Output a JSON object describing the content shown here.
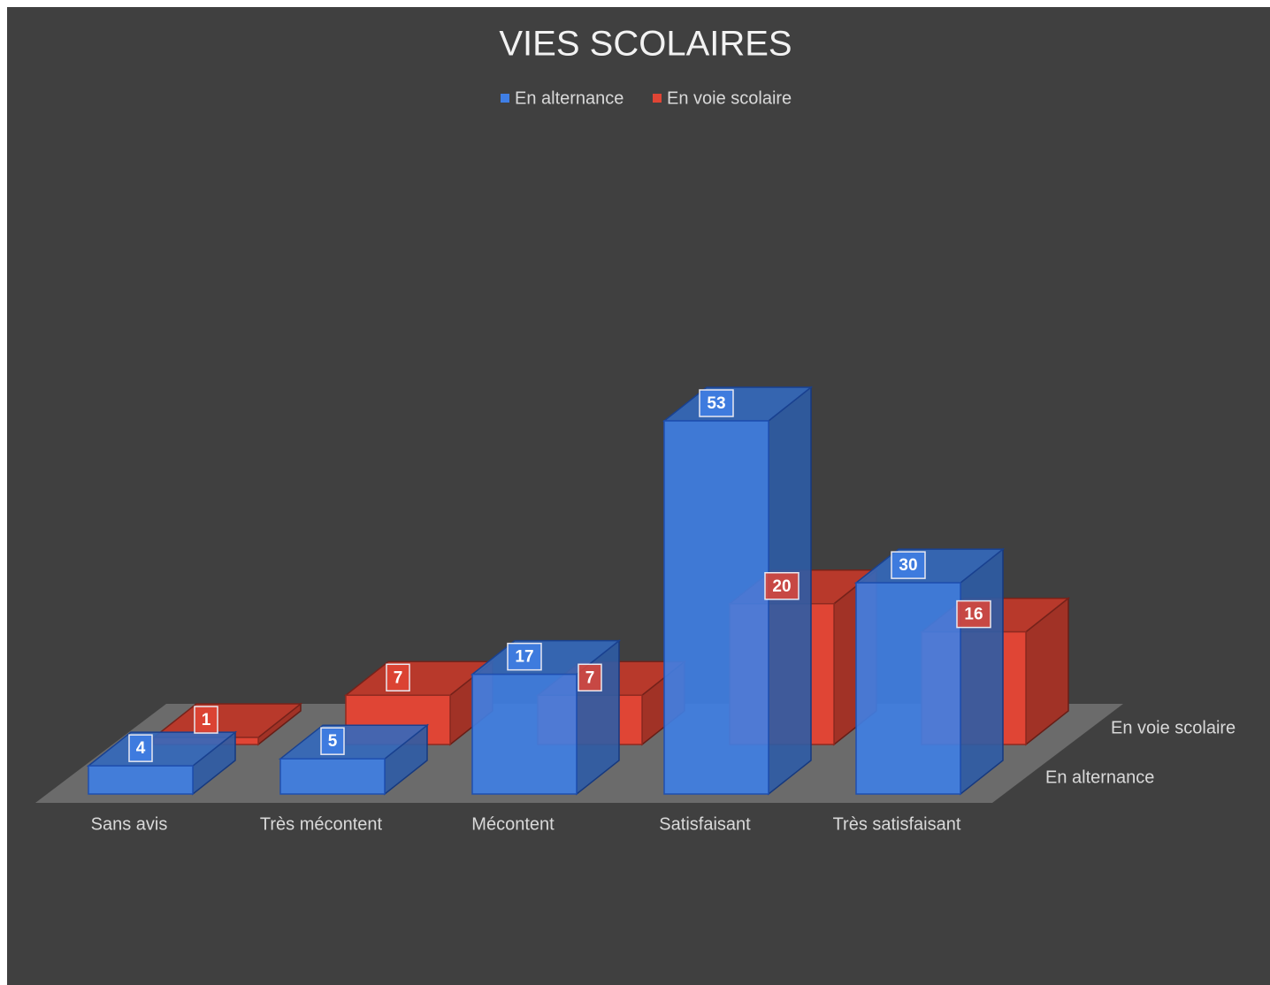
{
  "chart_data": {
    "type": "bar3d",
    "title": "VIES SCOLAIRES",
    "categories": [
      "Sans avis",
      "Très mécontent",
      "Mécontent",
      "Satisfaisant",
      "Très satisfaisant"
    ],
    "series": [
      {
        "name": "En alternance",
        "color": "#3f7fe6",
        "values": [
          4,
          5,
          17,
          53,
          30
        ]
      },
      {
        "name": "En voie scolaire",
        "color": "#e04535",
        "values": [
          1,
          7,
          7,
          20,
          16
        ]
      }
    ],
    "legend": "top"
  }
}
